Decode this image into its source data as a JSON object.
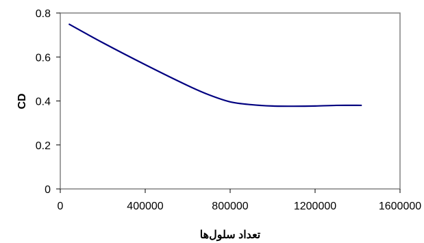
{
  "chart_data": {
    "type": "line",
    "title": "",
    "xlabel": "تعداد سلول‌ها",
    "ylabel": "CD",
    "xlim": [
      0,
      1600000
    ],
    "ylim": [
      0,
      0.8
    ],
    "xticks": [
      0,
      400000,
      800000,
      1200000,
      1600000
    ],
    "yticks": [
      0,
      0.2,
      0.4,
      0.6,
      0.8
    ],
    "xtick_labels": [
      "0",
      "400000",
      "800000",
      "1200000",
      "1600000"
    ],
    "ytick_labels": [
      "0",
      "0.2",
      "0.4",
      "0.6",
      "0.8"
    ],
    "grid": false,
    "legend": "none",
    "series": [
      {
        "color": "#000080",
        "x": [
          40000,
          200000,
          400000,
          600000,
          700000,
          800000,
          900000,
          1000000,
          1100000,
          1200000,
          1300000,
          1420000
        ],
        "y": [
          0.75,
          0.665,
          0.565,
          0.47,
          0.428,
          0.396,
          0.383,
          0.377,
          0.376,
          0.377,
          0.38,
          0.38
        ]
      }
    ]
  }
}
